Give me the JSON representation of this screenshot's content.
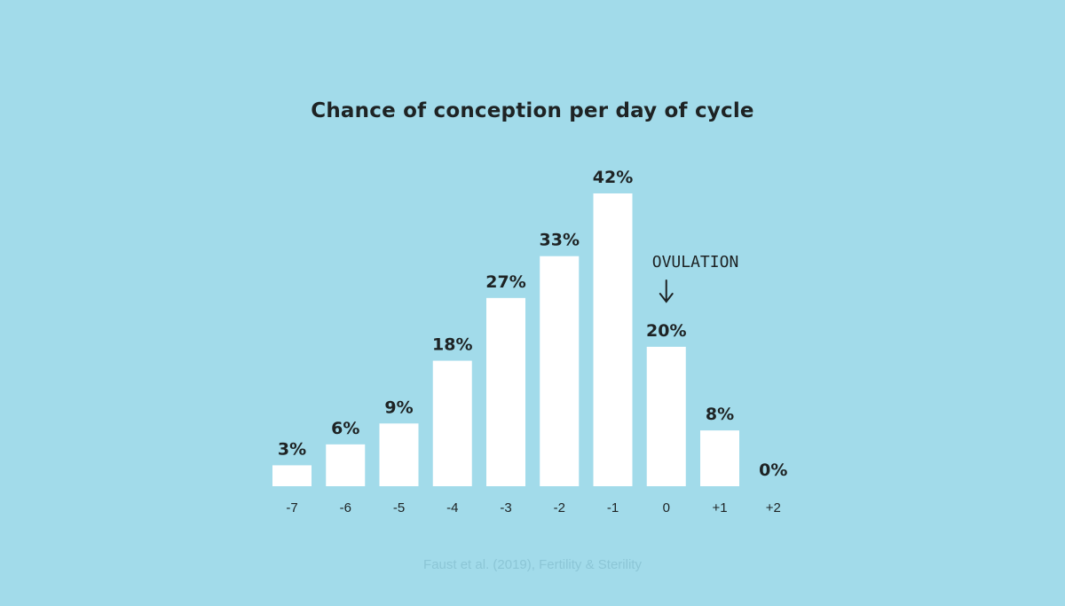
{
  "chart_data": {
    "type": "bar",
    "title": "Chance of conception per day of cycle",
    "categories": [
      "-7",
      "-6",
      "-5",
      "-4",
      "-3",
      "-2",
      "-1",
      "0",
      "+1",
      "+2"
    ],
    "values": [
      3,
      6,
      9,
      18,
      27,
      33,
      42,
      20,
      8,
      0
    ],
    "value_labels": [
      "3%",
      "6%",
      "9%",
      "18%",
      "27%",
      "33%",
      "42%",
      "20%",
      "8%",
      "0%"
    ],
    "xlabel": "",
    "ylabel": "",
    "ylim": [
      0,
      45
    ],
    "grid": false,
    "annotation": {
      "text": "OVULATION",
      "category": "0",
      "icon": "arrow-down-icon"
    },
    "source": "Faust et al. (2019), Fertility & Sterility",
    "colors": {
      "background": "#a2dbea",
      "bar": "#ffffff",
      "text": "#1e2324"
    }
  }
}
